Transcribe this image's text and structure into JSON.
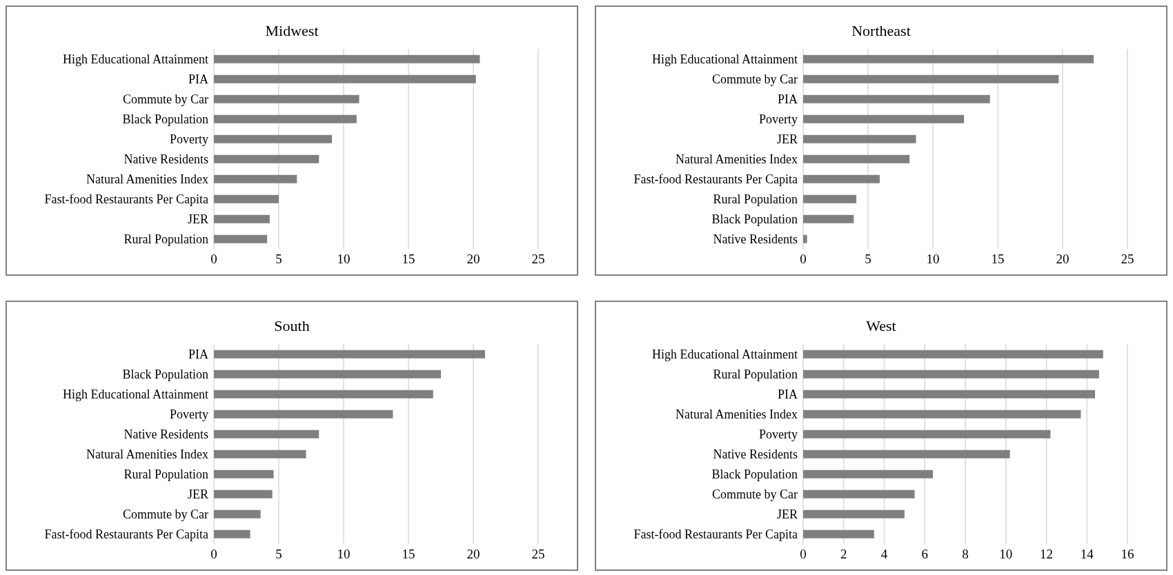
{
  "chart_data": [
    {
      "type": "bar",
      "orientation": "horizontal",
      "title": "Midwest",
      "categories": [
        "High Educational Attainment",
        "PIA",
        "Commute by Car",
        "Black Population",
        "Poverty",
        "Native Residents",
        "Natural Amenities Index",
        "Fast-food Restaurants Per Capita",
        "JER",
        "Rural Population"
      ],
      "values": [
        20.5,
        20.2,
        11.2,
        11.0,
        9.1,
        8.1,
        6.4,
        5.0,
        4.3,
        4.1
      ],
      "color": "#7f7f7f",
      "xlim": [
        0,
        25
      ],
      "xticks": [
        0,
        5,
        10,
        15,
        20,
        25
      ],
      "grid": "x"
    },
    {
      "type": "bar",
      "orientation": "horizontal",
      "title": "Northeast",
      "categories": [
        "High Educational Attainment",
        "Commute by Car",
        "PIA",
        "Poverty",
        "JER",
        "Natural Amenities Index",
        "Fast-food Restaurants Per Capita",
        "Rural Population",
        "Black Population",
        "Native Residents"
      ],
      "values": [
        22.4,
        19.7,
        14.4,
        12.4,
        8.7,
        8.2,
        5.9,
        4.1,
        3.9,
        0.3
      ],
      "color": "#7f7f7f",
      "xlim": [
        0,
        25
      ],
      "xticks": [
        0,
        5,
        10,
        15,
        20,
        25
      ],
      "grid": "x"
    },
    {
      "type": "bar",
      "orientation": "horizontal",
      "title": "South",
      "categories": [
        "PIA",
        "Black Population",
        "High Educational Attainment",
        "Poverty",
        "Native Residents",
        "Natural Amenities Index",
        "Rural Population",
        "JER",
        "Commute by Car",
        "Fast-food Restaurants Per Capita"
      ],
      "values": [
        20.9,
        17.5,
        16.9,
        13.8,
        8.1,
        7.1,
        4.6,
        4.5,
        3.6,
        2.8
      ],
      "color": "#7f7f7f",
      "xlim": [
        0,
        25
      ],
      "xticks": [
        0,
        5,
        10,
        15,
        20,
        25
      ],
      "grid": "x"
    },
    {
      "type": "bar",
      "orientation": "horizontal",
      "title": "West",
      "categories": [
        "High Educational Attainment",
        "Rural Population",
        "PIA",
        "Natural Amenities Index",
        "Poverty",
        "Native Residents",
        "Black Population",
        "Commute by Car",
        "JER",
        "Fast-food Restaurants Per Capita"
      ],
      "values": [
        14.8,
        14.6,
        14.4,
        13.7,
        12.2,
        10.2,
        6.4,
        5.5,
        5.0,
        3.5
      ],
      "color": "#7f7f7f",
      "xlim": [
        0,
        16
      ],
      "xticks": [
        0,
        2,
        4,
        6,
        8,
        10,
        12,
        14,
        16
      ],
      "grid": "x"
    }
  ]
}
